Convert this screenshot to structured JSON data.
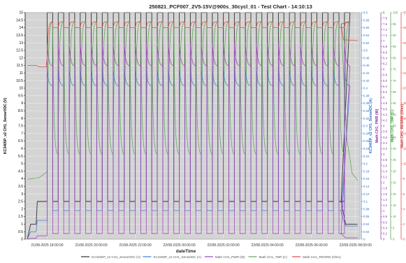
{
  "chart_data": {
    "type": "line",
    "title": "250821_PCF007_2V5-15V@900s_30cycl_01 - Test Chart - 14:10:13",
    "xlabel": "dateTime",
    "x_ticks": [
      "21/08-2025 18:00:00",
      "21/08-2025 20:00:00",
      "21/08-2025 22:00:00",
      "22/08-2025 00:00:00",
      "22/08-2025 02:00:00",
      "22/08-2025 04:00:00",
      "22/08-2025 06:00:00",
      "22/08-2025 08:00:00"
    ],
    "x_range_hours": [
      -1.0,
      14.2
    ],
    "grid": true,
    "legend_position": "bottom",
    "axes": [
      {
        "id": "v",
        "label": "KC3405P_v2 CH1_SenseVDC (V)",
        "side": "left",
        "color": "#000000",
        "min": 0,
        "max": 15,
        "step": 0.5,
        "ticks": [
          "0",
          "0.5",
          "1",
          "1.5",
          "2",
          "2.5",
          "3",
          "3.5",
          "4",
          "4.5",
          "5",
          "5.5",
          "6",
          "6.5",
          "7",
          "7.5",
          "8",
          "8.5",
          "9",
          "9.5",
          "10",
          "10.5",
          "11",
          "11.5",
          "12",
          "12.5",
          "13",
          "13.5",
          "14",
          "14.5",
          "15"
        ]
      },
      {
        "id": "a",
        "label": "KC3405P_v2 CH1_SenseIDC (A)",
        "side": "right",
        "color": "#2f6fc9",
        "min": 0,
        "max": 0.6,
        "step": 0.02,
        "ticks": [
          "0",
          "0.02",
          "0.04",
          "0.06",
          "0.08",
          "0.1",
          "0.12",
          "0.14",
          "0.16",
          "0.18",
          "0.2",
          "0.22",
          "0.24",
          "0.26",
          "0.28",
          "0.3",
          "0.32",
          "0.34",
          "0.36",
          "0.38",
          "0.4",
          "0.42",
          "0.44",
          "0.46",
          "0.48",
          "0.5",
          "0.52",
          "0.54",
          "0.56",
          "0.58",
          "0.6"
        ]
      },
      {
        "id": "w",
        "label": "Math CH1_PWR (W)",
        "side": "right",
        "color": "#8b2fa0",
        "min": 0,
        "max": 8,
        "step": 0.2,
        "ticks": [
          "0",
          "0.2",
          "0.4",
          "0.6",
          "0.8",
          "1",
          "1.2",
          "1.4",
          "1.6",
          "1.8",
          "2",
          "2.2",
          "2.4",
          "2.6",
          "2.8",
          "3",
          "3.2",
          "3.4",
          "3.6",
          "3.8",
          "4",
          "4.2",
          "4.4",
          "4.6",
          "4.8",
          "5",
          "5.2",
          "5.4",
          "5.6",
          "5.8",
          "6",
          "6.2",
          "6.4",
          "6.6",
          "6.8",
          "7",
          "7.2",
          "7.4",
          "7.6",
          "7.8",
          "8"
        ]
      },
      {
        "id": "t",
        "label": "Math CH1_TMP (C)",
        "side": "right",
        "color": "#3f9b3f",
        "min": 0,
        "max": 100,
        "step": 5,
        "ticks": [
          "0",
          "5",
          "10",
          "15",
          "20",
          "25",
          "30",
          "35",
          "40",
          "45",
          "50",
          "55",
          "60",
          "65",
          "70",
          "75",
          "80",
          "85",
          "90",
          "95",
          "100"
        ]
      },
      {
        "id": "r",
        "label": "Math CH1_RESRW (Ohm)",
        "side": "right",
        "color": "#d83a3a",
        "min": 0,
        "max": 30,
        "step": 2,
        "ticks": [
          "0",
          "2",
          "4",
          "6",
          "8",
          "10",
          "12",
          "14",
          "16",
          "18",
          "20",
          "22",
          "24",
          "26",
          "28",
          "30"
        ]
      }
    ],
    "cycle": {
      "first_rise_h": 0.0,
      "period_h": 0.5,
      "on_h": 0.25,
      "count": 28
    },
    "series": [
      {
        "name": "KC3405P_v2 CH1_SenseVDC (V)",
        "axis": "v",
        "color": "#303030",
        "pre": [
          [
            -0.9,
            0.0
          ],
          [
            -0.75,
            1.0
          ],
          [
            -0.5,
            1.0
          ],
          [
            -0.45,
            2.5
          ],
          [
            0.0,
            2.5
          ]
        ],
        "on_level": 15.0,
        "off_level": 2.5,
        "post": [
          [
            13.35,
            2.5
          ],
          [
            13.55,
            1.0
          ],
          [
            14.1,
            1.0
          ]
        ]
      },
      {
        "name": "KC3405P_v2 CH1_SenseIDC (A)",
        "axis": "a",
        "color": "#3c7fd6",
        "pre": [
          [
            -0.9,
            0.0
          ],
          [
            -0.75,
            0.02
          ],
          [
            -0.5,
            0.02
          ],
          [
            -0.45,
            0.05
          ],
          [
            0.0,
            0.05
          ]
        ],
        "on_peak": 0.45,
        "on_settle": 0.405,
        "off_level": 0.076,
        "post": [
          [
            13.35,
            0.07
          ],
          [
            13.55,
            0.035
          ],
          [
            14.1,
            0.035
          ]
        ]
      },
      {
        "name": "Math CH1_PWR (W)",
        "axis": "w",
        "color": "#a040c0",
        "pre": [
          [
            -0.9,
            0.0
          ],
          [
            -0.75,
            0.03
          ],
          [
            -0.5,
            0.03
          ],
          [
            -0.45,
            0.12
          ],
          [
            0.0,
            0.12
          ]
        ],
        "on_peak": 6.9,
        "on_settle": 6.1,
        "off_level": 0.2,
        "post": [
          [
            13.35,
            0.2
          ],
          [
            13.55,
            0.05
          ],
          [
            14.1,
            0.05
          ]
        ]
      },
      {
        "name": "Math CH1_TMP (C)",
        "axis": "t",
        "color": "#5aa84f",
        "pre": [
          [
            -0.9,
            26.5
          ],
          [
            -0.4,
            27.0
          ],
          [
            -0.1,
            29.0
          ],
          [
            0.0,
            30.0
          ]
        ],
        "on_level": 96,
        "off_level": 37,
        "post": [
          [
            13.35,
            95
          ],
          [
            13.6,
            45
          ],
          [
            13.85,
            29
          ],
          [
            14.1,
            26
          ]
        ]
      },
      {
        "name": "Math CH1_RESRW (Ohm)",
        "axis": "r",
        "color": "#e04848",
        "pre": [
          [
            -0.9,
            23.0
          ],
          [
            -0.5,
            23.0
          ],
          [
            -0.3,
            22.8
          ],
          [
            -0.05,
            22.8
          ]
        ],
        "on_start": 24.0,
        "on_level": 28.8,
        "off_level": 28.0,
        "post": [
          [
            13.35,
            28.5
          ],
          [
            13.45,
            26.4
          ],
          [
            14.1,
            26.3
          ]
        ]
      }
    ],
    "legend": [
      {
        "label": "KC3405P_v2 CH1_SenseVDC (V)",
        "color": "#303030"
      },
      {
        "label": "KC3405P_v2 CH1_SenseIDC (A)",
        "color": "#3c7fd6"
      },
      {
        "label": "Math CH1_PWR (W)",
        "color": "#a040c0"
      },
      {
        "label": "Math CH1_TMP (C)",
        "color": "#5aa84f"
      },
      {
        "label": "Math CH1_RESRW (Ohm)",
        "color": "#e04848"
      }
    ]
  }
}
